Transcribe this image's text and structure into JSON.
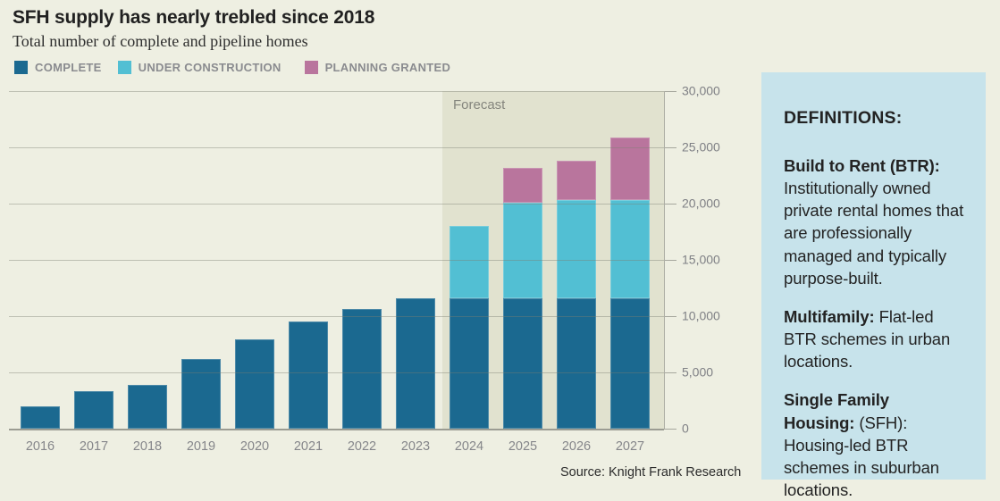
{
  "header": {
    "title": "SFH supply has nearly trebled since 2018",
    "subtitle": "Total number of complete and pipeline homes"
  },
  "legend": {
    "items": [
      {
        "label": "COMPLETE",
        "color": "#1b6990"
      },
      {
        "label": "UNDER CONSTRUCTION",
        "color": "#52bfd3"
      },
      {
        "label": "PLANNING GRANTED",
        "color": "#b9759d"
      }
    ]
  },
  "chart_data": {
    "type": "bar",
    "stacked": true,
    "title": "SFH supply has nearly trebled since 2018",
    "subtitle": "Total number of complete and pipeline homes",
    "categories": [
      "2016",
      "2017",
      "2018",
      "2019",
      "2020",
      "2021",
      "2022",
      "2023",
      "2024",
      "2025",
      "2026",
      "2027"
    ],
    "series": [
      {
        "name": "COMPLETE",
        "color": "#1b6990",
        "values": [
          2000,
          3300,
          3900,
          6200,
          7900,
          9500,
          10600,
          11600,
          11600,
          11600,
          11600,
          11600
        ]
      },
      {
        "name": "UNDER CONSTRUCTION",
        "color": "#52bfd3",
        "values": [
          0,
          0,
          0,
          0,
          0,
          0,
          0,
          0,
          6400,
          8500,
          8700,
          8700
        ]
      },
      {
        "name": "PLANNING GRANTED",
        "color": "#b9759d",
        "values": [
          0,
          0,
          0,
          0,
          0,
          0,
          0,
          0,
          0,
          3100,
          3500,
          5600
        ]
      }
    ],
    "totals": [
      2000,
      3300,
      3900,
      6200,
      7900,
      9500,
      10600,
      11600,
      18000,
      23200,
      23800,
      25900
    ],
    "ylabel": "",
    "xlabel": "",
    "ylim": [
      0,
      30000
    ],
    "ytick_interval": 5000,
    "ytick_labels": [
      "0",
      "5,000",
      "10,000",
      "15,000",
      "20,000",
      "25,000",
      "30,000"
    ],
    "grid": true,
    "legend_position": "top",
    "forecast": {
      "label": "Forecast",
      "start_category": "2024"
    }
  },
  "footer": {
    "source": "Source: Knight Frank Research"
  },
  "definitions": {
    "title": "DEFINITIONS:",
    "items": [
      {
        "term": "Build to Rent (BTR):",
        "text": "Institutionally owned private rental homes that are professionally managed and typically purpose-built."
      },
      {
        "term": "Multifamily:",
        "text": "Flat-led BTR schemes in urban locations."
      },
      {
        "term": "Single Family Housing:",
        "text": "(SFH): Housing-led BTR schemes in suburban locations."
      }
    ]
  },
  "colors": {
    "background": "#eeefe2",
    "forecast_band": "#e1e2cf",
    "panel_background": "#c7e3eb",
    "complete": "#1b6990",
    "under_construction": "#52bfd3",
    "planning_granted": "#b9759d",
    "grid_line": "#b8b9b0",
    "axis_text": "#7f8085",
    "text_dark": "#222222"
  }
}
